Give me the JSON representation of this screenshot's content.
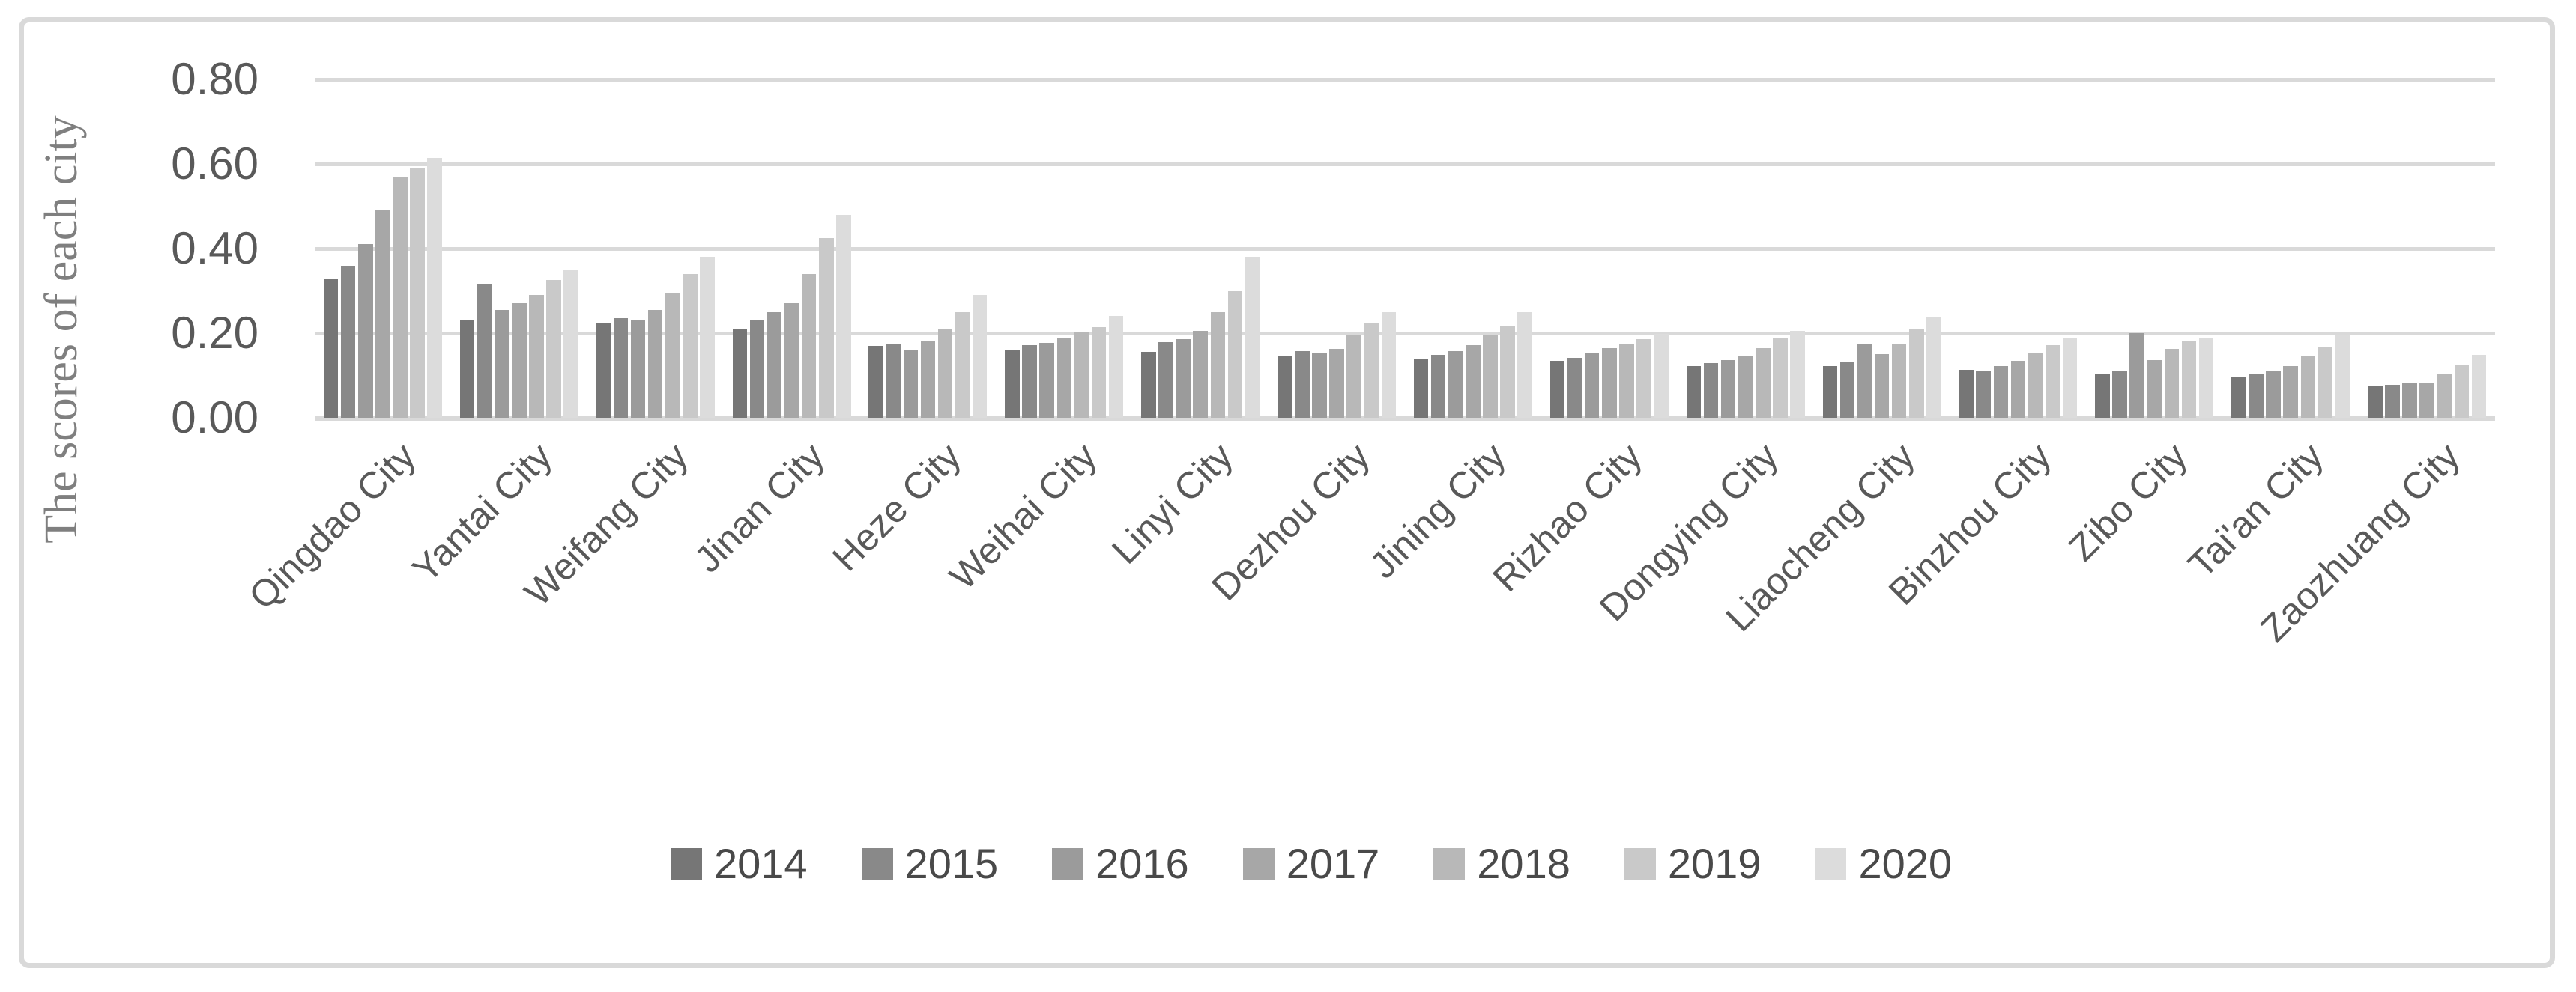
{
  "figure": {
    "border_color": "#d9d9d9",
    "background": "#ffffff"
  },
  "colors": {
    "gridline": "#d9d9d9",
    "axis_line": "#d9d9d9",
    "tick_text": "#595959",
    "category_text": "#595959",
    "legend_text": "#494949",
    "y_title_text": "#7f7f7f"
  },
  "chart_data": {
    "type": "bar",
    "title": "",
    "xlabel": "",
    "ylabel": "The scores of each city",
    "ylim": [
      0,
      0.8
    ],
    "yticks": [
      0.0,
      0.2,
      0.4,
      0.6,
      0.8
    ],
    "ytick_labels": [
      "0.00",
      "0.20",
      "0.40",
      "0.60",
      "0.80"
    ],
    "grid": true,
    "legend_position": "bottom",
    "categories": [
      "Qingdao City",
      "Yantai City",
      "Weifang City",
      "Jinan City",
      "Heze City",
      "Weihai City",
      "Linyi City",
      "Dezhou City",
      "Jining City",
      "Rizhao City",
      "Dongying City",
      "Liaocheng City",
      "Binzhou City",
      "Zibo City",
      "Tai'an City",
      "Zaozhuang City"
    ],
    "series": [
      {
        "name": "2014",
        "color": "#767676",
        "values": [
          0.33,
          0.23,
          0.225,
          0.21,
          0.17,
          0.16,
          0.155,
          0.147,
          0.138,
          0.135,
          0.122,
          0.123,
          0.114,
          0.105,
          0.095,
          0.076
        ]
      },
      {
        "name": "2015",
        "color": "#898989",
        "values": [
          0.36,
          0.315,
          0.235,
          0.23,
          0.175,
          0.172,
          0.178,
          0.158,
          0.148,
          0.142,
          0.13,
          0.131,
          0.11,
          0.112,
          0.105,
          0.078
        ]
      },
      {
        "name": "2016",
        "color": "#9b9b9b",
        "values": [
          0.41,
          0.255,
          0.23,
          0.25,
          0.16,
          0.177,
          0.185,
          0.153,
          0.157,
          0.154,
          0.136,
          0.173,
          0.122,
          0.2,
          0.11,
          0.083
        ]
      },
      {
        "name": "2017",
        "color": "#a7a7a7",
        "values": [
          0.49,
          0.27,
          0.255,
          0.27,
          0.18,
          0.19,
          0.205,
          0.162,
          0.172,
          0.164,
          0.147,
          0.15,
          0.135,
          0.136,
          0.123,
          0.081
        ]
      },
      {
        "name": "2018",
        "color": "#b8b8b8",
        "values": [
          0.57,
          0.29,
          0.295,
          0.34,
          0.21,
          0.203,
          0.25,
          0.196,
          0.196,
          0.176,
          0.165,
          0.175,
          0.152,
          0.162,
          0.146,
          0.103
        ]
      },
      {
        "name": "2019",
        "color": "#c9c9c9",
        "values": [
          0.59,
          0.325,
          0.34,
          0.425,
          0.25,
          0.215,
          0.3,
          0.224,
          0.218,
          0.186,
          0.19,
          0.208,
          0.172,
          0.182,
          0.166,
          0.124
        ]
      },
      {
        "name": "2020",
        "color": "#dcdcdc",
        "values": [
          0.615,
          0.35,
          0.38,
          0.48,
          0.29,
          0.24,
          0.38,
          0.25,
          0.25,
          0.198,
          0.205,
          0.239,
          0.19,
          0.19,
          0.195,
          0.149
        ]
      }
    ]
  }
}
